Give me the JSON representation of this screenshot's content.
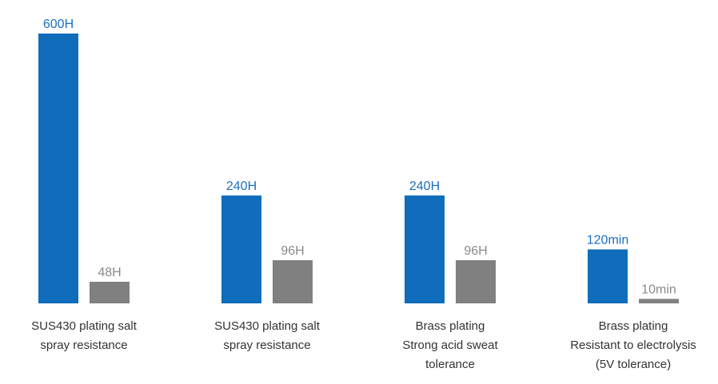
{
  "chart_data": {
    "type": "bar",
    "categories": [
      [
        "SUS430 plating salt",
        "spray resistance"
      ],
      [
        "SUS430 plating salt",
        "spray resistance"
      ],
      [
        "Brass plating",
        "Strong acid sweat",
        "tolerance"
      ],
      [
        "Brass plating",
        "Resistant to electrolysis",
        "(5V tolerance)"
      ]
    ],
    "series": [
      {
        "color": "#0f6dbb",
        "label_color": "#1a6fc0",
        "values": [
          600,
          240,
          240,
          120
        ],
        "value_labels": [
          "600H",
          "240H",
          "240H",
          "120min"
        ]
      },
      {
        "color": "#808080",
        "label_color": "#8a8a8a",
        "values": [
          48,
          96,
          96,
          10
        ],
        "value_labels": [
          "48H",
          "96H",
          "96H",
          "10min"
        ]
      }
    ]
  }
}
